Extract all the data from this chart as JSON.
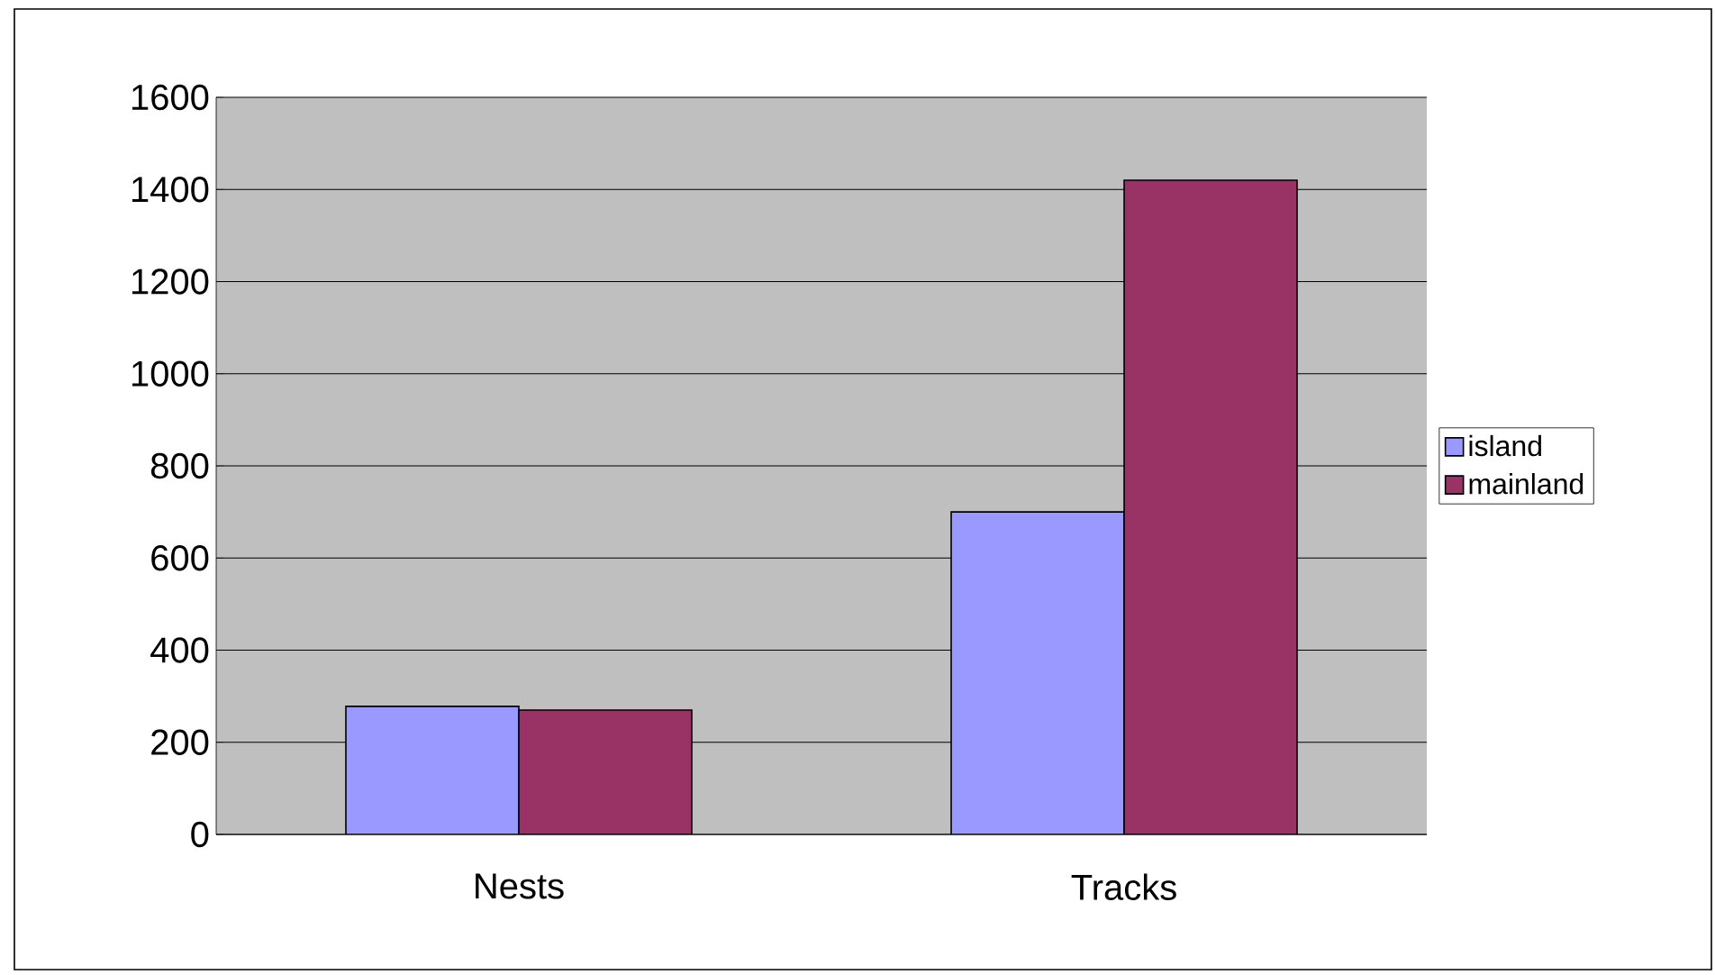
{
  "chart_data": {
    "type": "bar",
    "categories": [
      "Nests",
      "Tracks"
    ],
    "series": [
      {
        "name": "island",
        "color": "#9999ff",
        "values": [
          278,
          700
        ]
      },
      {
        "name": "mainland",
        "color": "#993366",
        "values": [
          270,
          1420
        ]
      }
    ],
    "ylim": [
      0,
      1600
    ],
    "yticks": [
      0,
      200,
      400,
      600,
      800,
      1000,
      1200,
      1400,
      1600
    ],
    "grid": "y",
    "legend": "right"
  }
}
